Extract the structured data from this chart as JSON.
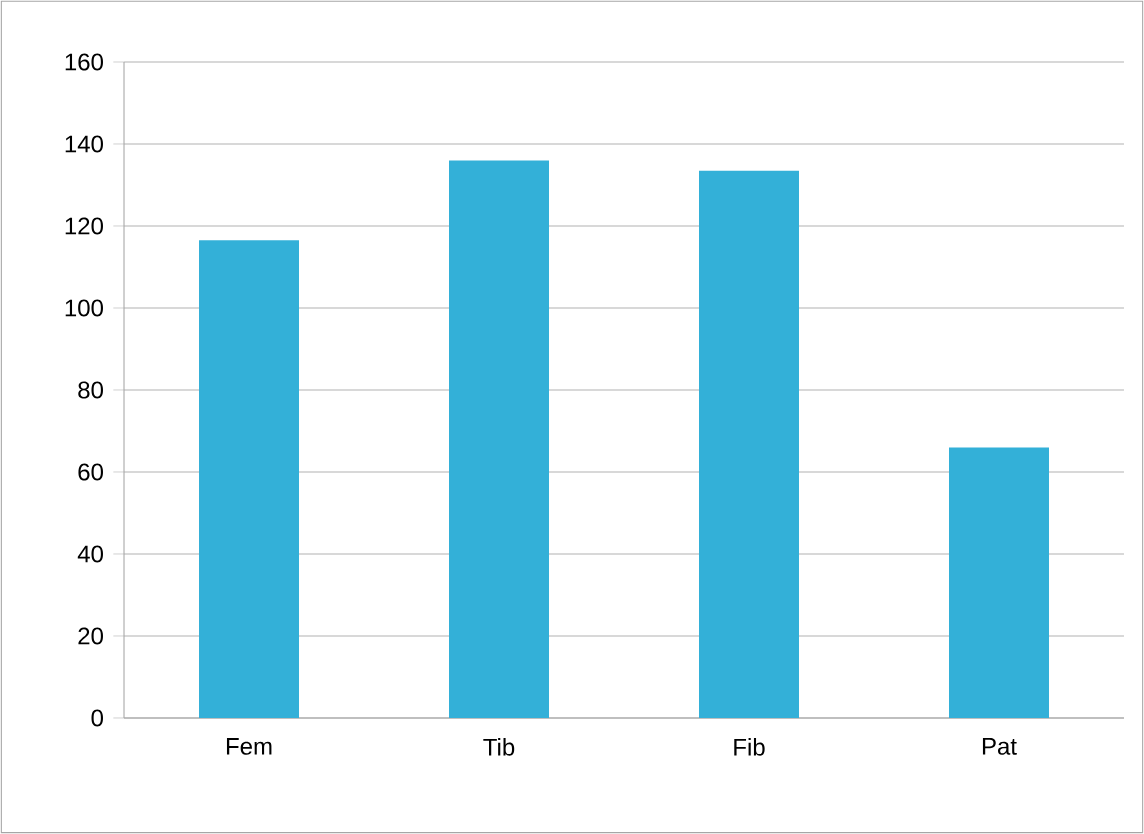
{
  "chart_data": {
    "type": "bar",
    "categories": [
      "Fem",
      "Tib",
      "Fib",
      "Pat"
    ],
    "values": [
      116.5,
      136,
      133.5,
      66
    ],
    "color": "#33b0d8",
    "ylim": [
      0,
      160
    ],
    "yticks": [
      0,
      20,
      40,
      60,
      80,
      100,
      120,
      140,
      160
    ],
    "grid": "y"
  }
}
